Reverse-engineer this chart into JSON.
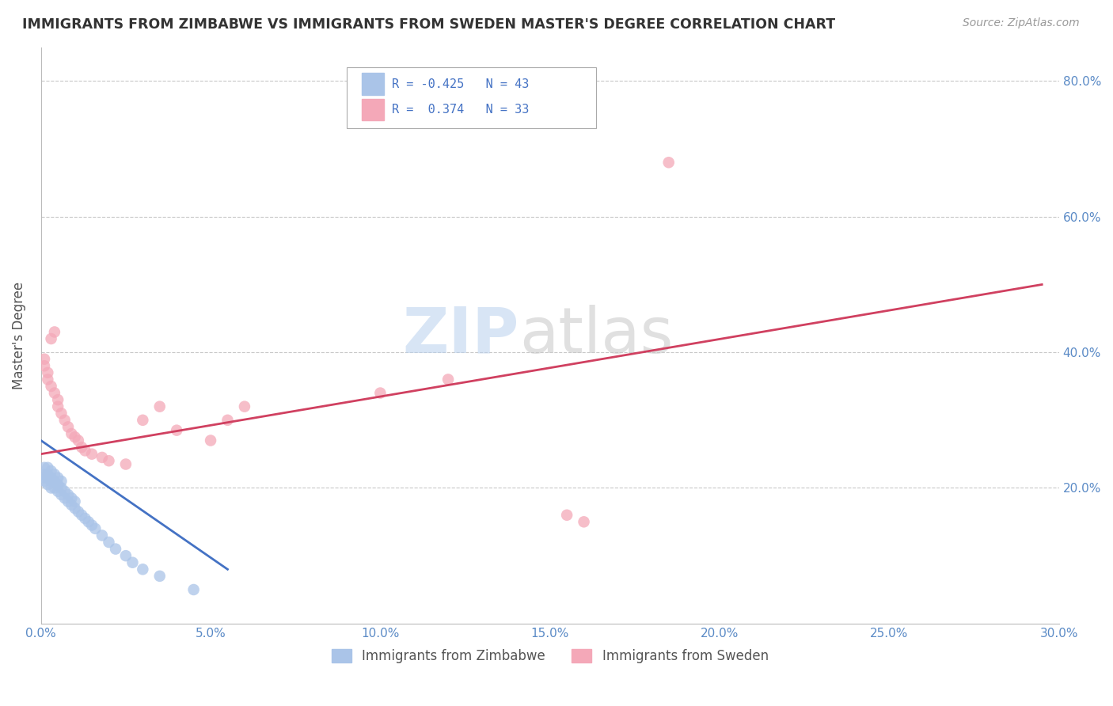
{
  "title": "IMMIGRANTS FROM ZIMBABWE VS IMMIGRANTS FROM SWEDEN MASTER'S DEGREE CORRELATION CHART",
  "source": "Source: ZipAtlas.com",
  "xlabel_blue": "Immigrants from Zimbabwe",
  "xlabel_pink": "Immigrants from Sweden",
  "ylabel": "Master's Degree",
  "r_blue": -0.425,
  "n_blue": 43,
  "r_pink": 0.374,
  "n_pink": 33,
  "xlim": [
    0.0,
    0.3
  ],
  "ylim": [
    0.0,
    0.85
  ],
  "color_blue": "#aac4e8",
  "color_pink": "#f4a8b8",
  "line_blue": "#4472c4",
  "line_pink": "#d04060",
  "grid_color": "#c8c8c8",
  "title_color": "#333333",
  "axis_color": "#555555",
  "tick_color": "#5a8ac6",
  "legend_r_color": "#4472c4",
  "blue_x": [
    0.001,
    0.001,
    0.001,
    0.001,
    0.002,
    0.002,
    0.002,
    0.002,
    0.003,
    0.003,
    0.003,
    0.003,
    0.004,
    0.004,
    0.004,
    0.005,
    0.005,
    0.005,
    0.006,
    0.006,
    0.006,
    0.007,
    0.007,
    0.008,
    0.008,
    0.009,
    0.009,
    0.01,
    0.01,
    0.011,
    0.012,
    0.013,
    0.014,
    0.015,
    0.016,
    0.018,
    0.02,
    0.022,
    0.025,
    0.027,
    0.03,
    0.035,
    0.045
  ],
  "blue_y": [
    0.21,
    0.215,
    0.22,
    0.23,
    0.205,
    0.215,
    0.22,
    0.23,
    0.2,
    0.21,
    0.215,
    0.225,
    0.2,
    0.21,
    0.22,
    0.195,
    0.205,
    0.215,
    0.19,
    0.2,
    0.21,
    0.185,
    0.195,
    0.18,
    0.19,
    0.175,
    0.185,
    0.17,
    0.18,
    0.165,
    0.16,
    0.155,
    0.15,
    0.145,
    0.14,
    0.13,
    0.12,
    0.11,
    0.1,
    0.09,
    0.08,
    0.07,
    0.05
  ],
  "pink_x": [
    0.001,
    0.001,
    0.002,
    0.002,
    0.003,
    0.003,
    0.004,
    0.004,
    0.005,
    0.005,
    0.006,
    0.007,
    0.008,
    0.009,
    0.01,
    0.011,
    0.012,
    0.013,
    0.015,
    0.018,
    0.02,
    0.025,
    0.03,
    0.035,
    0.04,
    0.05,
    0.055,
    0.06,
    0.1,
    0.12,
    0.155,
    0.16,
    0.185
  ],
  "pink_y": [
    0.39,
    0.38,
    0.37,
    0.36,
    0.35,
    0.42,
    0.34,
    0.43,
    0.33,
    0.32,
    0.31,
    0.3,
    0.29,
    0.28,
    0.275,
    0.27,
    0.26,
    0.255,
    0.25,
    0.245,
    0.24,
    0.235,
    0.3,
    0.32,
    0.285,
    0.27,
    0.3,
    0.32,
    0.34,
    0.36,
    0.16,
    0.15,
    0.68
  ],
  "blue_line_x": [
    0.0,
    0.055
  ],
  "blue_line_y": [
    0.27,
    0.08
  ],
  "pink_line_x": [
    0.0,
    0.295
  ],
  "pink_line_y": [
    0.25,
    0.5
  ]
}
